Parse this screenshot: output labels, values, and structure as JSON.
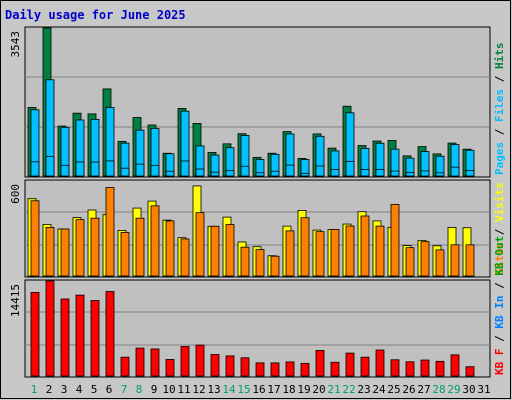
{
  "chart_data": [
    {
      "type": "bar",
      "title": "Daily usage for June 2025",
      "categories": [
        "1",
        "2",
        "3",
        "4",
        "5",
        "6",
        "7",
        "8",
        "9",
        "10",
        "11",
        "12",
        "13",
        "14",
        "15",
        "16",
        "17",
        "18",
        "19",
        "20",
        "21",
        "22",
        "23",
        "24",
        "25",
        "26",
        "27",
        "28",
        "29",
        "30",
        "31"
      ],
      "weekend_days": [
        "1",
        "7",
        "8",
        "14",
        "15",
        "21",
        "22",
        "28",
        "29"
      ],
      "y_max_label": "3543",
      "ylim": [
        0,
        3543
      ],
      "side_labels": [
        "Pages",
        "/",
        "Files",
        "/",
        "Hits"
      ],
      "series": [
        {
          "name": "Hits",
          "color": "#008040",
          "values": [
            1640,
            3543,
            1195,
            1504,
            1487,
            2085,
            829,
            1400,
            1221,
            545,
            1617,
            1258,
            565,
            770,
            1012,
            446,
            545,
            1063,
            421,
            1007,
            667,
            1670,
            729,
            837,
            851,
            482,
            704,
            529,
            788,
            642,
            0
          ]
        },
        {
          "name": "Files",
          "color": "#00c0ff",
          "values": [
            1585,
            2303,
            1166,
            1341,
            1356,
            1639,
            786,
            1097,
            1138,
            532,
            1552,
            719,
            501,
            677,
            971,
            396,
            519,
            1006,
            396,
            950,
            601,
            1513,
            662,
            784,
            642,
            427,
            586,
            474,
            752,
            616,
            0
          ]
        },
        {
          "name": "Pages",
          "color": "#00c0ff",
          "values": [
            339,
            466,
            256,
            337,
            334,
            361,
            187,
            284,
            256,
            114,
            360,
            167,
            92,
            128,
            233,
            78,
            114,
            261,
            64,
            240,
            154,
            350,
            156,
            158,
            117,
            86,
            121,
            77,
            212,
            129,
            0
          ]
        }
      ]
    },
    {
      "type": "bar",
      "categories": [
        "1",
        "2",
        "3",
        "4",
        "5",
        "6",
        "7",
        "8",
        "9",
        "10",
        "11",
        "12",
        "13",
        "14",
        "15",
        "16",
        "17",
        "18",
        "19",
        "20",
        "21",
        "22",
        "23",
        "24",
        "25",
        "26",
        "27",
        "28",
        "29",
        "30",
        "31"
      ],
      "y_max_label": "600",
      "ylim": [
        0,
        600
      ],
      "side_labels": [
        "Sites",
        "/",
        "Visits"
      ],
      "series": [
        {
          "name": "Visits",
          "color": "#ffff00",
          "values": [
            488,
            326,
            297,
            369,
            417,
            387,
            288,
            429,
            473,
            353,
            242,
            569,
            314,
            372,
            215,
            185,
            128,
            315,
            414,
            290,
            294,
            328,
            406,
            348,
            307,
            192,
            225,
            191,
            307,
            305,
            0
          ]
        },
        {
          "name": "Sites",
          "color": "#ff8000",
          "values": [
            475,
            307,
            297,
            356,
            365,
            559,
            275,
            365,
            443,
            348,
            234,
            400,
            314,
            325,
            182,
            167,
            125,
            285,
            368,
            280,
            294,
            316,
            379,
            315,
            452,
            179,
            217,
            165,
            197,
            197,
            0
          ]
        }
      ]
    },
    {
      "type": "bar",
      "categories": [
        "1",
        "2",
        "3",
        "4",
        "5",
        "6",
        "7",
        "8",
        "9",
        "10",
        "11",
        "12",
        "13",
        "14",
        "15",
        "16",
        "17",
        "18",
        "19",
        "20",
        "21",
        "22",
        "23",
        "24",
        "25",
        "26",
        "27",
        "28",
        "29",
        "30",
        "31"
      ],
      "y_max_label": "14415",
      "ylim": [
        0,
        14415
      ],
      "side_labels": [
        "KB F",
        "/",
        "KB In",
        "/",
        "KB Out"
      ],
      "series": [
        {
          "name": "KB F",
          "color": "#ff0000",
          "values": [
            12690,
            14415,
            11684,
            12277,
            11453,
            12823,
            2854,
            4235,
            4104,
            2511,
            4477,
            4687,
            3260,
            3050,
            2765,
            1997,
            1984,
            2136,
            1917,
            3884,
            2089,
            3474,
            2854,
            3942,
            2463,
            2160,
            2421,
            2230,
            3209,
            1412,
            0
          ]
        }
      ]
    }
  ]
}
